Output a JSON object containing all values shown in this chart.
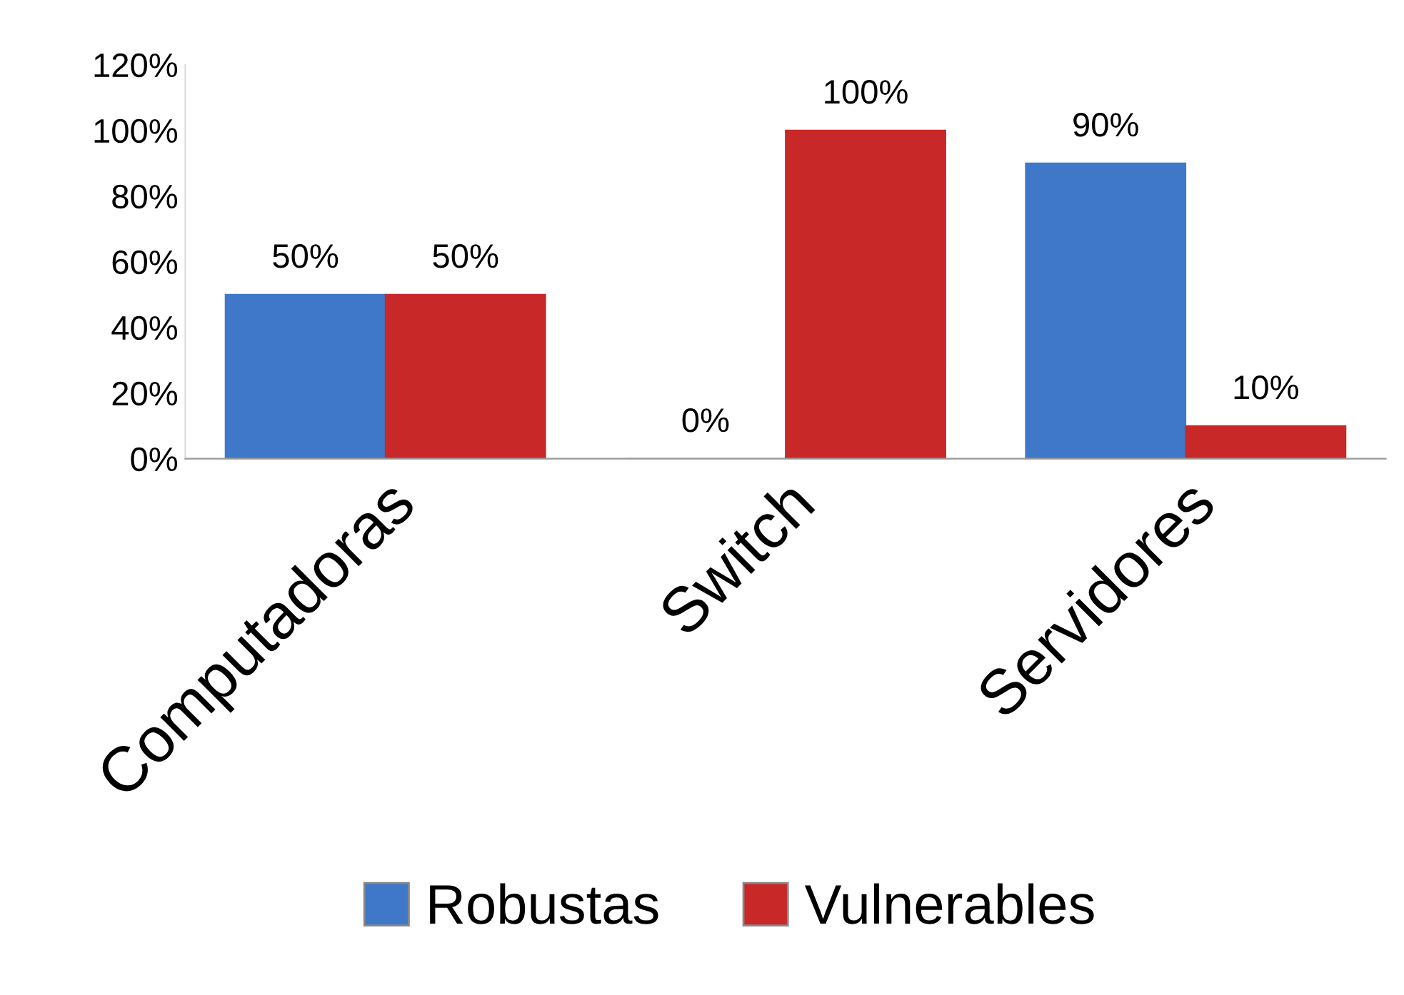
{
  "chart_data": {
    "type": "bar",
    "categories": [
      "Computadoras",
      "Switch",
      "Servidores"
    ],
    "series": [
      {
        "name": "Robustas",
        "color": "#3f78c8",
        "values": [
          50,
          0,
          90
        ],
        "value_labels": [
          "50%",
          "0%",
          "90%"
        ]
      },
      {
        "name": "Vulnerables",
        "color": "#c82828",
        "values": [
          50,
          100,
          10
        ],
        "value_labels": [
          "50%",
          "100%",
          "10%"
        ]
      }
    ],
    "ylim": [
      0,
      120
    ],
    "yticks": [
      {
        "value": 0,
        "label": "0%"
      },
      {
        "value": 20,
        "label": "20%"
      },
      {
        "value": 40,
        "label": "40%"
      },
      {
        "value": 60,
        "label": "60%"
      },
      {
        "value": 80,
        "label": "80%"
      },
      {
        "value": 100,
        "label": "100%"
      },
      {
        "value": 120,
        "label": "120%"
      }
    ],
    "grid": false,
    "legend": "bottom"
  }
}
